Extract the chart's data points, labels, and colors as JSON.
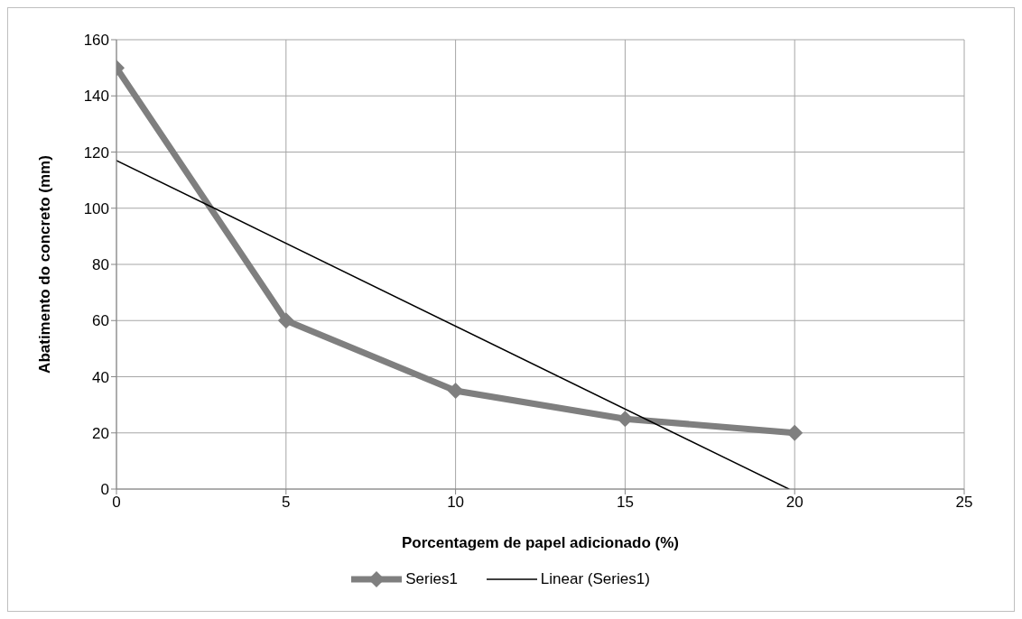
{
  "chart_data": {
    "type": "line",
    "xlabel": "Porcentagem de papel adicionado (%)",
    "ylabel": "Abatimento do concreto (mm)",
    "xlim": [
      0,
      25
    ],
    "xticks": [
      0,
      5,
      10,
      15,
      20,
      25
    ],
    "ylim": [
      0,
      160
    ],
    "yticks": [
      0,
      20,
      40,
      60,
      80,
      100,
      120,
      140,
      160
    ],
    "grid": true,
    "legend": "bottom",
    "marker": "diamond",
    "series": [
      {
        "name": "Series1",
        "color": "#7f7f7f",
        "x": [
          0,
          5,
          10,
          15,
          20
        ],
        "values": [
          150,
          60,
          35,
          25,
          20
        ]
      },
      {
        "name": "Linear (Series1)",
        "color": "#000000",
        "marker": "none",
        "x": [
          0,
          19.83
        ],
        "values": [
          117,
          0
        ]
      }
    ]
  }
}
